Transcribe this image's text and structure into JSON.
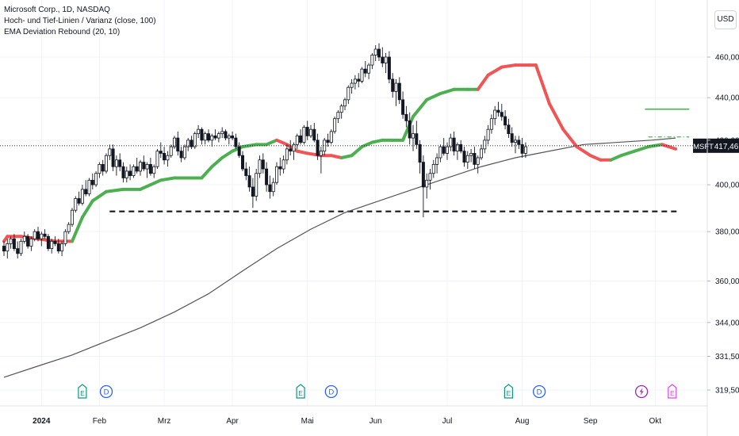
{
  "header": {
    "symbol_line": "Microsoft Corp., 1D, NASDAQ",
    "indicator_1": "Hoch- und Tief-Linien / Varianz (close, 100)",
    "indicator_2": "EMA Deviation Rebound (20, 10)"
  },
  "currency_button": "USD",
  "colors": {
    "candle": "#131722",
    "ema_green": "#4caf50",
    "ema_red": "#f05454",
    "sma": "#555555",
    "grid": "#f0f3fa",
    "earnings": "#089981",
    "dividend": "#2962ff",
    "split": "#9c27b0",
    "earn_future": "#e040fb",
    "price_tag": "#131722"
  },
  "chart_data": {
    "type": "candlestick",
    "title": "Microsoft Corp., 1D, NASDAQ",
    "currency": "USD",
    "price_axis": {
      "ticks": [
        460,
        440,
        420,
        400,
        380,
        360,
        344,
        331.5,
        319.5
      ],
      "tick_labels": [
        "460,00",
        "440,00",
        "420,00",
        "400,00",
        "380,00",
        "360,00",
        "344,00",
        "331,50",
        "319,50"
      ],
      "scale": "log",
      "range": [
        312,
        474
      ]
    },
    "time_axis": {
      "labels": [
        "2024",
        "Feb",
        "Mrz",
        "Apr",
        "Mai",
        "Jun",
        "Jul",
        "Aug",
        "Sep",
        "Okt"
      ],
      "label_bars": [
        11,
        28,
        47,
        67,
        89,
        109,
        130,
        152,
        172,
        191
      ],
      "bars_total": 198
    },
    "last_price": {
      "symbol": "MSFT",
      "value": 417.46,
      "label": "417,46"
    },
    "levels": [
      {
        "name": "support",
        "value": 388.5,
        "start_bar": 31,
        "end_bar": 198,
        "style": "dashed"
      },
      {
        "name": "high-level",
        "value": 434.5,
        "start_bar": 188,
        "end_bar": 201,
        "style": "solid"
      },
      {
        "name": "mid-level",
        "value": 421.5,
        "start_bar": 189,
        "end_bar": 201,
        "style": "dash-dot"
      }
    ],
    "ema_rebound": [
      [
        0,
        376,
        "g"
      ],
      [
        1,
        378,
        "r"
      ],
      [
        5,
        378,
        "r"
      ],
      [
        10,
        377,
        "r"
      ],
      [
        15,
        376,
        "r"
      ],
      [
        20,
        376,
        "r"
      ],
      [
        23,
        386,
        "g"
      ],
      [
        26,
        393,
        "g"
      ],
      [
        30,
        397,
        "g"
      ],
      [
        35,
        398,
        "g"
      ],
      [
        40,
        398,
        "g"
      ],
      [
        43,
        400,
        "g"
      ],
      [
        46,
        402,
        "g"
      ],
      [
        50,
        403,
        "g"
      ],
      [
        55,
        403,
        "g"
      ],
      [
        58,
        403,
        "g"
      ],
      [
        61,
        408,
        "g"
      ],
      [
        64,
        412,
        "g"
      ],
      [
        67,
        415,
        "g"
      ],
      [
        70,
        417,
        "g"
      ],
      [
        74,
        418,
        "g"
      ],
      [
        77,
        418,
        "g"
      ],
      [
        80,
        420,
        "g"
      ],
      [
        83,
        418,
        "r"
      ],
      [
        86,
        415,
        "r"
      ],
      [
        89,
        414,
        "r"
      ],
      [
        93,
        413,
        "r"
      ],
      [
        96,
        413,
        "r"
      ],
      [
        99,
        412,
        "r"
      ],
      [
        102,
        413,
        "g"
      ],
      [
        105,
        417,
        "g"
      ],
      [
        108,
        419,
        "g"
      ],
      [
        111,
        420,
        "g"
      ],
      [
        114,
        420,
        "g"
      ],
      [
        117,
        420,
        "g"
      ],
      [
        120,
        431,
        "g"
      ],
      [
        124,
        439,
        "g"
      ],
      [
        128,
        442,
        "g"
      ],
      [
        132,
        444,
        "g"
      ],
      [
        136,
        444,
        "g"
      ],
      [
        139,
        444,
        "g"
      ],
      [
        142,
        451,
        "r"
      ],
      [
        146,
        455,
        "r"
      ],
      [
        150,
        456,
        "r"
      ],
      [
        154,
        456,
        "r"
      ],
      [
        156,
        456,
        "r"
      ],
      [
        160,
        437,
        "r"
      ],
      [
        164,
        425,
        "r"
      ],
      [
        168,
        417,
        "r"
      ],
      [
        172,
        413,
        "r"
      ],
      [
        175,
        411,
        "r"
      ],
      [
        178,
        411,
        "r"
      ],
      [
        181,
        413,
        "g"
      ],
      [
        185,
        415,
        "g"
      ],
      [
        189,
        417,
        "g"
      ],
      [
        193,
        418,
        "g"
      ],
      [
        195,
        417,
        "r"
      ],
      [
        197,
        416,
        "r"
      ]
    ],
    "sma_200": [
      [
        0,
        324
      ],
      [
        10,
        328
      ],
      [
        20,
        332
      ],
      [
        30,
        337
      ],
      [
        40,
        342
      ],
      [
        50,
        348
      ],
      [
        60,
        355
      ],
      [
        70,
        364
      ],
      [
        80,
        373
      ],
      [
        90,
        381
      ],
      [
        100,
        388
      ],
      [
        110,
        393
      ],
      [
        120,
        398
      ],
      [
        130,
        403
      ],
      [
        140,
        408
      ],
      [
        150,
        412
      ],
      [
        160,
        415
      ],
      [
        170,
        418
      ],
      [
        180,
        419
      ],
      [
        190,
        420
      ],
      [
        197,
        421
      ]
    ],
    "ohlc": [
      [
        374,
        376,
        370,
        372
      ],
      [
        372,
        377,
        369,
        375
      ],
      [
        375,
        378,
        373,
        377
      ],
      [
        377,
        379,
        372,
        373
      ],
      [
        373,
        376,
        369,
        371
      ],
      [
        371,
        377,
        370,
        376
      ],
      [
        376,
        380,
        375,
        378
      ],
      [
        378,
        379,
        373,
        374
      ],
      [
        374,
        378,
        372,
        377
      ],
      [
        377,
        381,
        376,
        380
      ],
      [
        380,
        382,
        376,
        377
      ],
      [
        377,
        380,
        374,
        379
      ],
      [
        379,
        381,
        377,
        378
      ],
      [
        378,
        379,
        372,
        373
      ],
      [
        373,
        377,
        371,
        376
      ],
      [
        376,
        378,
        374,
        375
      ],
      [
        375,
        377,
        371,
        372
      ],
      [
        372,
        376,
        370,
        375
      ],
      [
        375,
        381,
        374,
        380
      ],
      [
        380,
        384,
        379,
        383
      ],
      [
        383,
        390,
        382,
        389
      ],
      [
        389,
        395,
        388,
        394
      ],
      [
        394,
        397,
        391,
        392
      ],
      [
        392,
        400,
        391,
        398
      ],
      [
        398,
        402,
        395,
        396
      ],
      [
        396,
        403,
        395,
        402
      ],
      [
        402,
        405,
        398,
        400
      ],
      [
        400,
        406,
        399,
        405
      ],
      [
        405,
        410,
        403,
        409
      ],
      [
        409,
        411,
        404,
        406
      ],
      [
        406,
        414,
        405,
        413
      ],
      [
        413,
        418,
        411,
        416
      ],
      [
        416,
        418,
        406,
        408
      ],
      [
        408,
        413,
        404,
        411
      ],
      [
        411,
        414,
        406,
        408
      ],
      [
        408,
        410,
        401,
        403
      ],
      [
        403,
        408,
        401,
        406
      ],
      [
        406,
        409,
        402,
        404
      ],
      [
        404,
        409,
        403,
        408
      ],
      [
        408,
        412,
        405,
        406
      ],
      [
        406,
        411,
        404,
        410
      ],
      [
        410,
        413,
        406,
        407
      ],
      [
        407,
        410,
        403,
        409
      ],
      [
        409,
        412,
        404,
        405
      ],
      [
        405,
        409,
        403,
        408
      ],
      [
        408,
        416,
        407,
        415
      ],
      [
        415,
        419,
        412,
        414
      ],
      [
        414,
        417,
        409,
        411
      ],
      [
        411,
        415,
        408,
        413
      ],
      [
        413,
        418,
        412,
        417
      ],
      [
        417,
        422,
        416,
        421
      ],
      [
        421,
        424,
        413,
        415
      ],
      [
        415,
        417,
        410,
        412
      ],
      [
        412,
        418,
        411,
        417
      ],
      [
        417,
        421,
        415,
        420
      ],
      [
        420,
        422,
        416,
        417
      ],
      [
        417,
        424,
        416,
        423
      ],
      [
        423,
        427,
        421,
        425
      ],
      [
        425,
        426,
        418,
        420
      ],
      [
        420,
        424,
        418,
        423
      ],
      [
        423,
        425,
        419,
        420
      ],
      [
        420,
        423,
        417,
        422
      ],
      [
        422,
        425,
        420,
        421
      ],
      [
        421,
        424,
        419,
        423
      ],
      [
        423,
        426,
        421,
        424
      ],
      [
        424,
        425,
        420,
        421
      ],
      [
        421,
        423,
        418,
        422
      ],
      [
        422,
        424,
        420,
        421
      ],
      [
        421,
        423,
        416,
        417
      ],
      [
        417,
        419,
        412,
        413
      ],
      [
        413,
        415,
        406,
        407
      ],
      [
        407,
        410,
        402,
        404
      ],
      [
        404,
        408,
        397,
        399
      ],
      [
        399,
        403,
        390,
        395
      ],
      [
        395,
        407,
        393,
        405
      ],
      [
        405,
        413,
        403,
        411
      ],
      [
        411,
        414,
        405,
        407
      ],
      [
        407,
        410,
        397,
        400
      ],
      [
        400,
        404,
        394,
        397
      ],
      [
        397,
        403,
        395,
        401
      ],
      [
        401,
        410,
        400,
        408
      ],
      [
        408,
        412,
        404,
        407
      ],
      [
        407,
        413,
        405,
        411
      ],
      [
        411,
        418,
        409,
        416
      ],
      [
        416,
        420,
        413,
        415
      ],
      [
        415,
        419,
        411,
        418
      ],
      [
        418,
        423,
        416,
        422
      ],
      [
        422,
        425,
        418,
        419
      ],
      [
        419,
        427,
        418,
        426
      ],
      [
        426,
        429,
        420,
        422
      ],
      [
        422,
        427,
        421,
        425
      ],
      [
        425,
        428,
        419,
        420
      ],
      [
        420,
        423,
        411,
        413
      ],
      [
        413,
        417,
        405,
        415
      ],
      [
        415,
        421,
        413,
        420
      ],
      [
        420,
        423,
        417,
        419
      ],
      [
        419,
        425,
        418,
        424
      ],
      [
        424,
        431,
        423,
        430
      ],
      [
        430,
        434,
        428,
        433
      ],
      [
        433,
        437,
        430,
        436
      ],
      [
        436,
        440,
        434,
        439
      ],
      [
        439,
        446,
        437,
        445
      ],
      [
        445,
        449,
        442,
        447
      ],
      [
        447,
        451,
        444,
        449
      ],
      [
        449,
        452,
        445,
        448
      ],
      [
        448,
        455,
        447,
        454
      ],
      [
        454,
        458,
        450,
        452
      ],
      [
        452,
        457,
        449,
        456
      ],
      [
        456,
        462,
        454,
        461
      ],
      [
        461,
        466,
        458,
        464
      ],
      [
        464,
        467,
        458,
        460
      ],
      [
        460,
        465,
        455,
        457
      ],
      [
        457,
        462,
        452,
        460
      ],
      [
        460,
        463,
        447,
        449
      ],
      [
        449,
        452,
        440,
        443
      ],
      [
        443,
        449,
        436,
        447
      ],
      [
        447,
        450,
        437,
        439
      ],
      [
        439,
        443,
        430,
        432
      ],
      [
        432,
        436,
        426,
        429
      ],
      [
        429,
        433,
        418,
        421
      ],
      [
        421,
        427,
        415,
        423
      ],
      [
        423,
        429,
        416,
        418
      ],
      [
        418,
        420,
        405,
        410
      ],
      [
        410,
        413,
        386,
        399
      ],
      [
        399,
        405,
        394,
        402
      ],
      [
        402,
        407,
        398,
        405
      ],
      [
        405,
        411,
        403,
        409
      ],
      [
        409,
        414,
        405,
        412
      ],
      [
        412,
        418,
        410,
        417
      ],
      [
        417,
        421,
        413,
        414
      ],
      [
        414,
        419,
        411,
        417
      ],
      [
        417,
        423,
        415,
        421
      ],
      [
        421,
        424,
        413,
        415
      ],
      [
        415,
        419,
        411,
        418
      ],
      [
        418,
        420,
        414,
        415
      ],
      [
        415,
        417,
        408,
        410
      ],
      [
        410,
        415,
        407,
        413
      ],
      [
        413,
        416,
        410,
        414
      ],
      [
        414,
        417,
        407,
        409
      ],
      [
        409,
        413,
        405,
        412
      ],
      [
        412,
        418,
        411,
        416
      ],
      [
        416,
        422,
        414,
        420
      ],
      [
        420,
        427,
        418,
        425
      ],
      [
        425,
        432,
        423,
        430
      ],
      [
        430,
        436,
        427,
        434
      ],
      [
        434,
        438,
        431,
        433
      ],
      [
        433,
        437,
        429,
        431
      ],
      [
        431,
        434,
        425,
        427
      ],
      [
        427,
        430,
        421,
        423
      ],
      [
        423,
        426,
        417,
        419
      ],
      [
        419,
        422,
        414,
        420
      ],
      [
        420,
        422,
        416,
        418
      ],
      [
        418,
        421,
        412,
        414
      ],
      [
        414,
        419,
        412,
        417
      ]
    ],
    "events": [
      {
        "type": "E",
        "bar": 23
      },
      {
        "type": "D",
        "bar": 30
      },
      {
        "type": "E",
        "bar": 87
      },
      {
        "type": "D",
        "bar": 96
      },
      {
        "type": "E",
        "bar": 148
      },
      {
        "type": "D",
        "bar": 157
      },
      {
        "type": "S",
        "bar": 187
      },
      {
        "type": "E",
        "bar": 196
      }
    ]
  }
}
